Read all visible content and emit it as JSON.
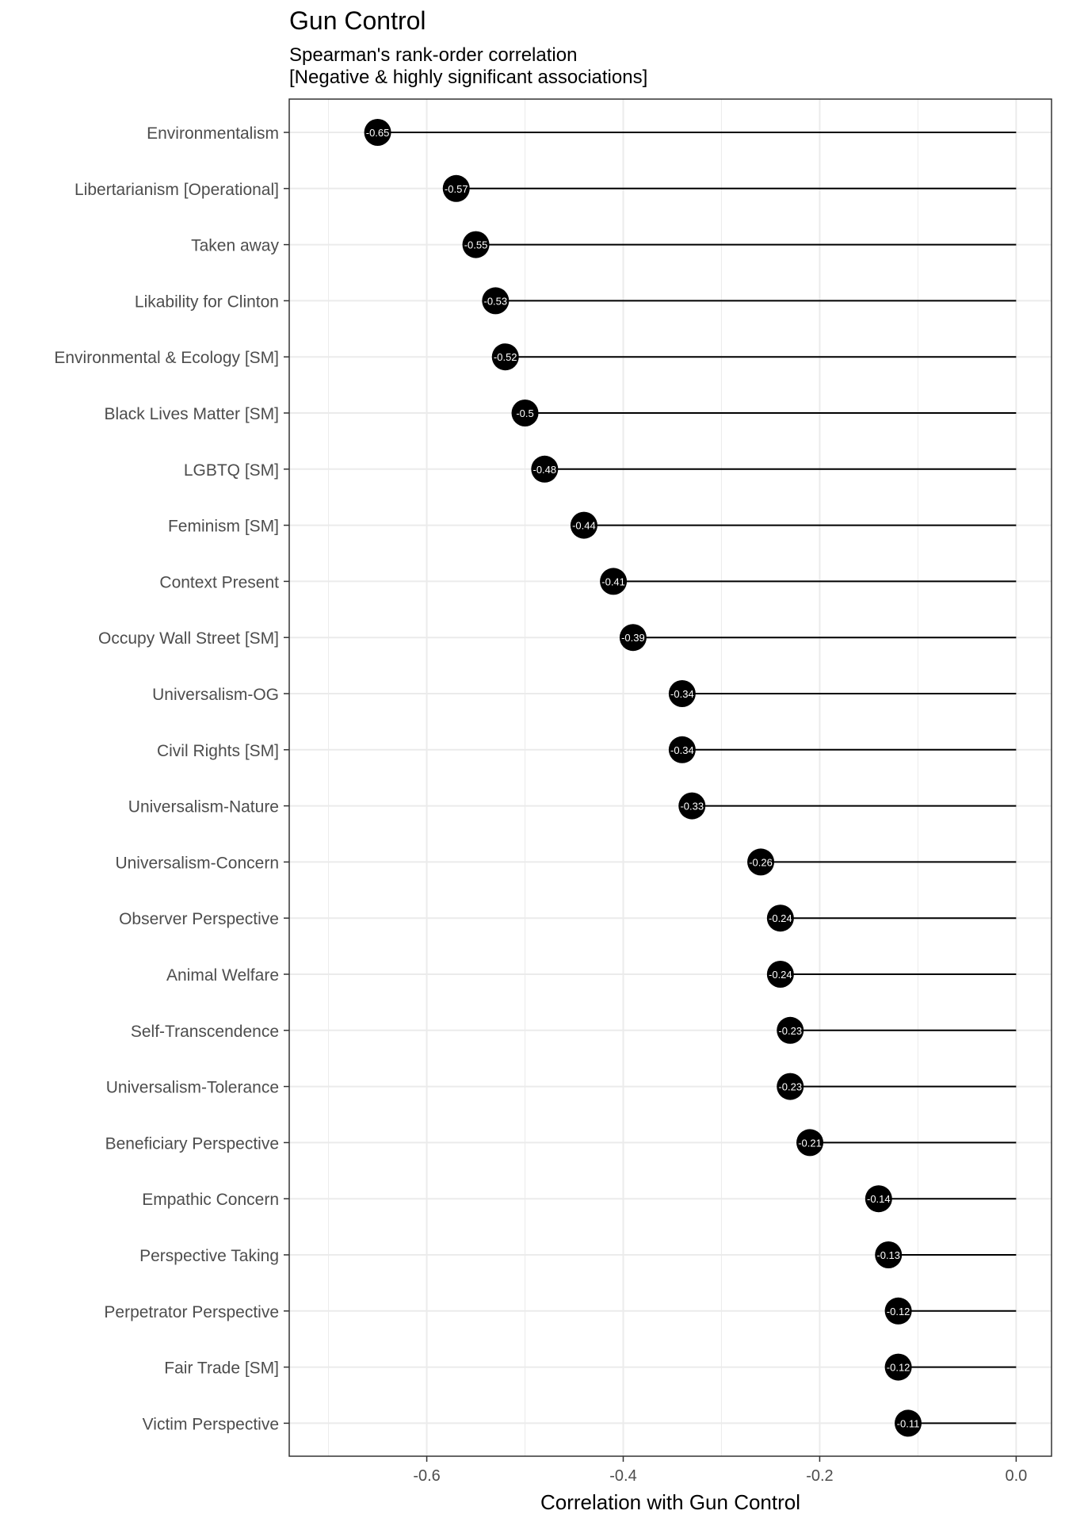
{
  "chart_data": {
    "type": "lollipop",
    "title": "Gun Control",
    "subtitle_lines": [
      "Spearman's rank-order correlation",
      "[Negative & highly significant associations]"
    ],
    "xlabel": "Correlation with Gun Control",
    "xlim": [
      -0.74,
      0.036
    ],
    "xticks": [
      -0.6,
      -0.4,
      -0.2,
      0.0
    ],
    "xtick_labels": [
      "-0.6",
      "-0.4",
      "-0.2",
      "0.0"
    ],
    "grid": true,
    "categories": [
      "Environmentalism",
      "Libertarianism [Operational]",
      "Taken away",
      "Likability for Clinton",
      "Environmental & Ecology [SM]",
      "Black Lives Matter [SM]",
      "LGBTQ [SM]",
      "Feminism [SM]",
      "Context Present",
      "Occupy Wall Street [SM]",
      "Universalism-OG",
      "Civil Rights [SM]",
      "Universalism-Nature",
      "Universalism-Concern",
      "Observer Perspective",
      "Animal Welfare",
      "Self-Transcendence",
      "Universalism-Tolerance",
      "Beneficiary Perspective",
      "Empathic Concern",
      "Perspective Taking",
      "Perpetrator Perspective",
      "Fair Trade [SM]",
      "Victim Perspective"
    ],
    "values": [
      -0.65,
      -0.57,
      -0.55,
      -0.53,
      -0.52,
      -0.5,
      -0.48,
      -0.44,
      -0.41,
      -0.39,
      -0.34,
      -0.34,
      -0.33,
      -0.26,
      -0.24,
      -0.24,
      -0.23,
      -0.23,
      -0.21,
      -0.14,
      -0.13,
      -0.12,
      -0.12,
      -0.11
    ],
    "value_labels": [
      "-0.65",
      "-0.57",
      "-0.55",
      "-0.53",
      "-0.52",
      "-0.5",
      "-0.48",
      "-0.44",
      "-0.41",
      "-0.39",
      "-0.34",
      "-0.34",
      "-0.33",
      "-0.26",
      "-0.24",
      "-0.24",
      "-0.23",
      "-0.23",
      "-0.21",
      "-0.14",
      "-0.13",
      "-0.12",
      "-0.12",
      "-0.11"
    ],
    "colors": {
      "point": "#000000",
      "segment": "#000000",
      "grid": "#ebebeb",
      "axis_text": "#4d4d4d",
      "panel_border": "#333333"
    }
  }
}
